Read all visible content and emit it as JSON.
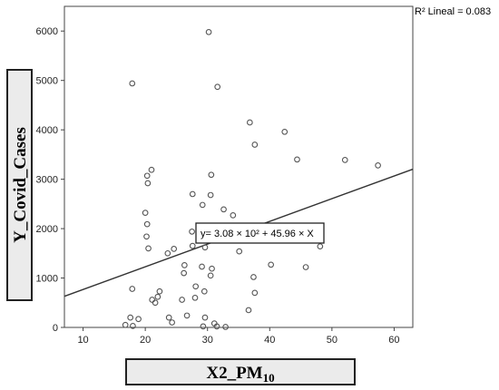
{
  "chart_data": {
    "type": "scatter",
    "xlabel": "X2_PM",
    "xlabel_sub": "10",
    "ylabel": "Y_Covid_Cases",
    "xlim": [
      7,
      63
    ],
    "ylim": [
      0,
      6500
    ],
    "xticks": [
      10,
      20,
      30,
      40,
      50,
      60
    ],
    "yticks": [
      0,
      1000,
      2000,
      3000,
      4000,
      5000,
      6000
    ],
    "r2_label": "R² Lineal = 0.083",
    "fit": {
      "intercept": 308,
      "slope": 45.96,
      "equation": "y= 3.08 × 10² + 45.96 × X"
    },
    "points": [
      [
        30.2,
        5980
      ],
      [
        17.9,
        4940
      ],
      [
        31.6,
        4870
      ],
      [
        36.8,
        4150
      ],
      [
        42.4,
        3960
      ],
      [
        37.6,
        3700
      ],
      [
        44.4,
        3400
      ],
      [
        52.1,
        3390
      ],
      [
        57.4,
        3280
      ],
      [
        21.0,
        3190
      ],
      [
        20.3,
        3070
      ],
      [
        30.6,
        3090
      ],
      [
        20.4,
        2920
      ],
      [
        27.6,
        2700
      ],
      [
        30.5,
        2680
      ],
      [
        29.2,
        2480
      ],
      [
        32.6,
        2390
      ],
      [
        34.1,
        2270
      ],
      [
        20.0,
        2320
      ],
      [
        20.3,
        2090
      ],
      [
        27.5,
        1940
      ],
      [
        20.2,
        1840
      ],
      [
        32.5,
        1810
      ],
      [
        29.6,
        1620
      ],
      [
        20.5,
        1600
      ],
      [
        24.6,
        1590
      ],
      [
        27.6,
        1650
      ],
      [
        23.6,
        1500
      ],
      [
        35.1,
        1540
      ],
      [
        26.3,
        1260
      ],
      [
        29.1,
        1230
      ],
      [
        30.7,
        1190
      ],
      [
        40.2,
        1270
      ],
      [
        45.8,
        1220
      ],
      [
        48.1,
        1640
      ],
      [
        26.2,
        1100
      ],
      [
        30.5,
        1050
      ],
      [
        37.4,
        1020
      ],
      [
        17.9,
        780
      ],
      [
        22.3,
        730
      ],
      [
        28.1,
        830
      ],
      [
        29.5,
        730
      ],
      [
        37.6,
        700
      ],
      [
        22.0,
        620
      ],
      [
        21.1,
        560
      ],
      [
        25.9,
        560
      ],
      [
        28.0,
        600
      ],
      [
        21.6,
        500
      ],
      [
        36.6,
        350
      ],
      [
        17.6,
        200
      ],
      [
        18.9,
        170
      ],
      [
        23.8,
        200
      ],
      [
        24.3,
        100
      ],
      [
        26.7,
        240
      ],
      [
        29.6,
        200
      ],
      [
        16.8,
        50
      ],
      [
        18.0,
        30
      ],
      [
        29.3,
        20
      ],
      [
        31.1,
        80
      ],
      [
        31.5,
        20
      ],
      [
        32.9,
        10
      ]
    ]
  }
}
